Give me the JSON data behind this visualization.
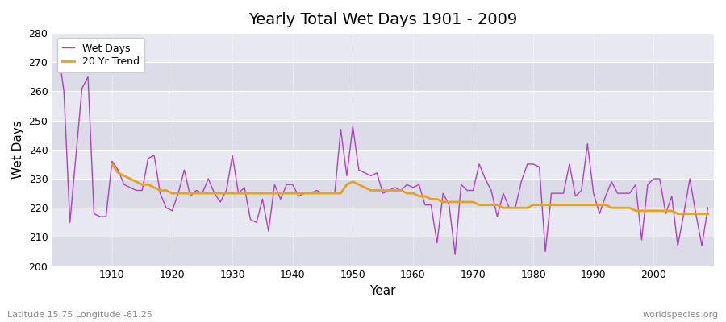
{
  "title": "Yearly Total Wet Days 1901 - 2009",
  "xlabel": "Year",
  "ylabel": "Wet Days",
  "footnote_left": "Latitude 15.75 Longitude -61.25",
  "footnote_right": "worldspecies.org",
  "ylim": [
    200,
    280
  ],
  "yticks": [
    200,
    210,
    220,
    230,
    240,
    250,
    260,
    270,
    280
  ],
  "wet_days_color": "#b040c0",
  "trend_color": "#e8a020",
  "bg_color": "#e4e4ec",
  "fig_color": "#ffffff",
  "band_color_light": "#dcdce8",
  "band_color_dark": "#e8e8f0",
  "years": [
    1901,
    1902,
    1903,
    1904,
    1905,
    1906,
    1907,
    1908,
    1909,
    1910,
    1911,
    1912,
    1913,
    1914,
    1915,
    1916,
    1917,
    1918,
    1919,
    1920,
    1921,
    1922,
    1923,
    1924,
    1925,
    1926,
    1927,
    1928,
    1929,
    1930,
    1931,
    1932,
    1933,
    1934,
    1935,
    1936,
    1937,
    1938,
    1939,
    1940,
    1941,
    1942,
    1943,
    1944,
    1945,
    1946,
    1947,
    1948,
    1949,
    1950,
    1951,
    1952,
    1953,
    1954,
    1955,
    1956,
    1957,
    1958,
    1959,
    1960,
    1961,
    1962,
    1963,
    1964,
    1965,
    1966,
    1967,
    1968,
    1969,
    1970,
    1971,
    1972,
    1973,
    1974,
    1975,
    1976,
    1977,
    1978,
    1979,
    1980,
    1981,
    1982,
    1983,
    1984,
    1985,
    1986,
    1987,
    1988,
    1989,
    1990,
    1991,
    1992,
    1993,
    1994,
    1995,
    1996,
    1997,
    1998,
    1999,
    2000,
    2001,
    2002,
    2003,
    2004,
    2005,
    2006,
    2007,
    2008,
    2009
  ],
  "wet_days": [
    275,
    260,
    215,
    238,
    261,
    265,
    218,
    217,
    217,
    236,
    233,
    228,
    227,
    226,
    226,
    237,
    238,
    225,
    220,
    219,
    225,
    233,
    224,
    226,
    225,
    230,
    225,
    222,
    226,
    238,
    225,
    227,
    216,
    215,
    223,
    212,
    228,
    223,
    228,
    228,
    224,
    225,
    225,
    226,
    225,
    225,
    225,
    247,
    231,
    248,
    233,
    232,
    231,
    232,
    225,
    226,
    227,
    226,
    228,
    227,
    228,
    221,
    221,
    208,
    225,
    221,
    204,
    228,
    226,
    226,
    235,
    230,
    226,
    217,
    225,
    220,
    220,
    229,
    235,
    235,
    234,
    205,
    225,
    225,
    225,
    235,
    224,
    226,
    242,
    225,
    218,
    224,
    229,
    225,
    225,
    225,
    228,
    209,
    228,
    230,
    230,
    218,
    224,
    207,
    218,
    230,
    218,
    207,
    220
  ],
  "trend": [
    null,
    null,
    null,
    null,
    null,
    null,
    null,
    null,
    null,
    235,
    232,
    231,
    230,
    229,
    228,
    228,
    227,
    226,
    226,
    225,
    225,
    225,
    225,
    225,
    225,
    225,
    225,
    225,
    225,
    225,
    225,
    225,
    225,
    225,
    225,
    225,
    225,
    225,
    225,
    225,
    225,
    225,
    225,
    225,
    225,
    225,
    225,
    225,
    228,
    229,
    228,
    227,
    226,
    226,
    226,
    226,
    226,
    226,
    225,
    225,
    224,
    224,
    223,
    223,
    222,
    222,
    222,
    222,
    222,
    222,
    221,
    221,
    221,
    221,
    220,
    220,
    220,
    220,
    220,
    221,
    221,
    221,
    221,
    221,
    221,
    221,
    221,
    221,
    221,
    221,
    221,
    221,
    220,
    220,
    220,
    220,
    219,
    219,
    219,
    219,
    219,
    219,
    219,
    218,
    218,
    218,
    218,
    218,
    218
  ]
}
